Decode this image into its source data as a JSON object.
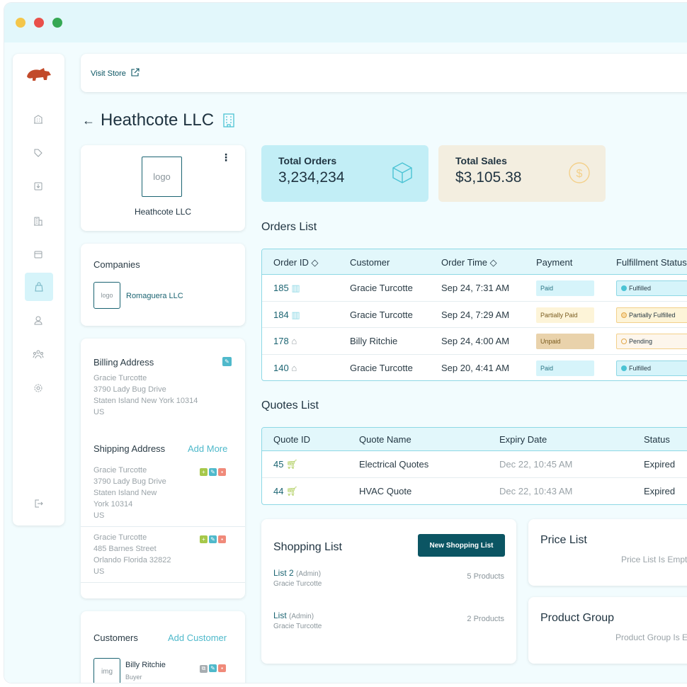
{
  "window": {
    "controls": [
      "minimize",
      "close",
      "maximize"
    ]
  },
  "topbar": {
    "visit_store": "Visit Store"
  },
  "page": {
    "title": "Heathcote LLC"
  },
  "sidebar": {
    "items": [
      {
        "icon": "company-icon"
      },
      {
        "icon": "tag-icon"
      },
      {
        "icon": "download-box-icon"
      },
      {
        "icon": "building-icon"
      },
      {
        "icon": "calendar-icon"
      },
      {
        "icon": "bag-icon",
        "active": true
      },
      {
        "icon": "user-icon"
      },
      {
        "icon": "team-icon"
      },
      {
        "icon": "settings-icon"
      },
      {
        "icon": "logout-icon"
      }
    ]
  },
  "company_card": {
    "logo_text": "logo",
    "name": "Heathcote LLC"
  },
  "companies": {
    "title": "Companies",
    "items": [
      {
        "logo": "logo",
        "name": "Romaguera LLC"
      }
    ]
  },
  "addresses": {
    "billing_title": "Billing Address",
    "billing": [
      "Gracie  Turcotte",
      "3790 Lady Bug Drive",
      "Staten Island New York 10314",
      "US"
    ],
    "shipping_title": "Shipping Address",
    "add_more": "Add More",
    "shipping": [
      [
        "Gracie  Turcotte",
        "3790 Lady Bug Drive",
        "Staten Island New",
        "York 10314",
        "US"
      ],
      [
        "Gracie  Turcotte",
        "485 Barnes Street",
        "Orlando Florida 32822",
        "US"
      ]
    ]
  },
  "customers": {
    "title": "Customers",
    "add": "Add Customer",
    "items": [
      {
        "img": "img",
        "name": "Billy Ritchie",
        "role": "Buyer"
      }
    ]
  },
  "stats": {
    "orders": {
      "title": "Total Orders",
      "value": "3,234,234",
      "color": "#c2eef6"
    },
    "sales": {
      "title": "Total Sales",
      "value": "$3,105.38",
      "color": "#f3eee0"
    }
  },
  "orders": {
    "title": "Orders List",
    "headers": [
      "Order ID ◇",
      "Customer",
      "Order Time ◇",
      "Payment",
      "Fulfillment Status"
    ],
    "rows": [
      {
        "id": "185",
        "icon": "building-icon",
        "customer": "Gracie Turcotte",
        "time": "Sep 24, 7:31 AM",
        "payment": "Paid",
        "fulfillment": "Fulfilled"
      },
      {
        "id": "184",
        "icon": "building-icon",
        "customer": "Gracie Turcotte",
        "time": "Sep 24, 7:29 AM",
        "payment": "Partially Paid",
        "fulfillment": "Partially Fulfilled"
      },
      {
        "id": "178",
        "icon": "storefront-icon",
        "customer": "Billy Ritchie",
        "time": "Sep 24, 4:00 AM",
        "payment": "Unpaid",
        "fulfillment": "Pending"
      },
      {
        "id": "140",
        "icon": "storefront-icon",
        "customer": "Gracie Turcotte",
        "time": "Sep 20, 4:41 AM",
        "payment": "Paid",
        "fulfillment": "Fulfilled"
      }
    ]
  },
  "quotes": {
    "title": "Quotes List",
    "headers": [
      "Quote ID",
      "Quote Name",
      "Expiry Date",
      "Status"
    ],
    "rows": [
      {
        "id": "45",
        "name": "Electrical Quotes",
        "expiry": "Dec 22, 10:45 AM",
        "status": "Expired"
      },
      {
        "id": "44",
        "name": "HVAC Quote",
        "expiry": "Dec 22, 10:43 AM",
        "status": "Expired"
      }
    ]
  },
  "shopping": {
    "title": "Shopping List",
    "new_button": "New Shopping List",
    "items": [
      {
        "name": "List 2",
        "role": "(Admin)",
        "owner": "Gracie Turcotte",
        "count": "5 Products"
      },
      {
        "name": "List",
        "role": "(Admin)",
        "owner": "Gracie Turcotte",
        "count": "2 Products"
      }
    ]
  },
  "price_list": {
    "title": "Price List",
    "empty": "Price List Is Empty"
  },
  "product_group": {
    "title": "Product Group",
    "empty": "Product Group Is Empty"
  }
}
